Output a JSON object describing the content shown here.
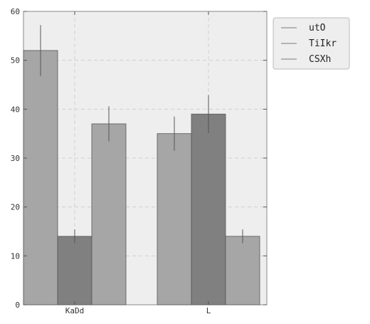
{
  "chart_data": {
    "type": "bar",
    "categories": [
      "KaDd",
      "L"
    ],
    "series": [
      {
        "name": "utO",
        "values": [
          52,
          35
        ],
        "errors": [
          5.2,
          3.5
        ],
        "color": "#a6a6a6"
      },
      {
        "name": "TiIkr",
        "values": [
          14,
          39
        ],
        "errors": [
          1.4,
          3.9
        ],
        "color": "#808080"
      },
      {
        "name": "CSXh",
        "values": [
          37,
          14
        ],
        "errors": [
          3.6,
          1.4
        ],
        "color": "#a6a6a6"
      }
    ],
    "title": "",
    "xlabel": "",
    "ylabel": "",
    "ylim": [
      0,
      60
    ],
    "yticks": [
      0,
      10,
      20,
      30,
      40,
      50,
      60
    ],
    "grid": true,
    "legend": "top-right",
    "colors": {
      "plot_background": "#eeeeee",
      "grid": "#d0d0d0",
      "error_bar": "#555555",
      "legend_background": "#eeeeee"
    }
  }
}
